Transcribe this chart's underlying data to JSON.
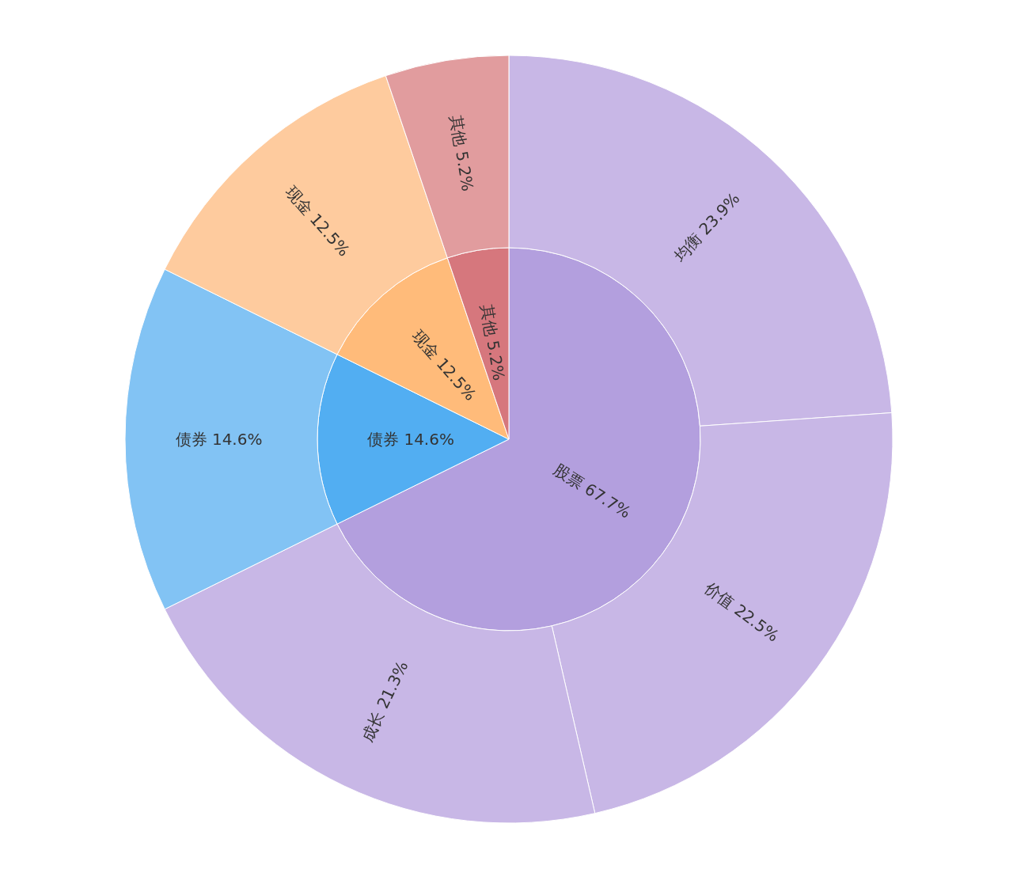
{
  "chart_data": [
    {
      "type": "pie",
      "categories": [
        "股票",
        "债券",
        "现金",
        "其他"
      ],
      "values": [
        67.7,
        14.6,
        12.5,
        5.2
      ],
      "value_labels": [
        "67.7%",
        "14.6%",
        "12.5%",
        "5.2%"
      ],
      "colors": [
        "#b39fde",
        "#52aef2",
        "#ffbb7a",
        "#d6777d"
      ],
      "legend": false
    },
    {
      "type": "donut",
      "categories": [
        "均衡",
        "价值",
        "成长",
        "债券",
        "现金",
        "其他"
      ],
      "values": [
        23.9,
        22.5,
        21.3,
        14.6,
        12.5,
        5.2
      ],
      "value_labels": [
        "23.9%",
        "22.5%",
        "21.3%",
        "14.6%",
        "12.5%",
        "5.2%"
      ],
      "colors": [
        "#c8b7e6",
        "#c8b7e6",
        "#c8b7e6",
        "#82c3f4",
        "#fecb9e",
        "#e19c9e"
      ],
      "legend": false
    }
  ]
}
